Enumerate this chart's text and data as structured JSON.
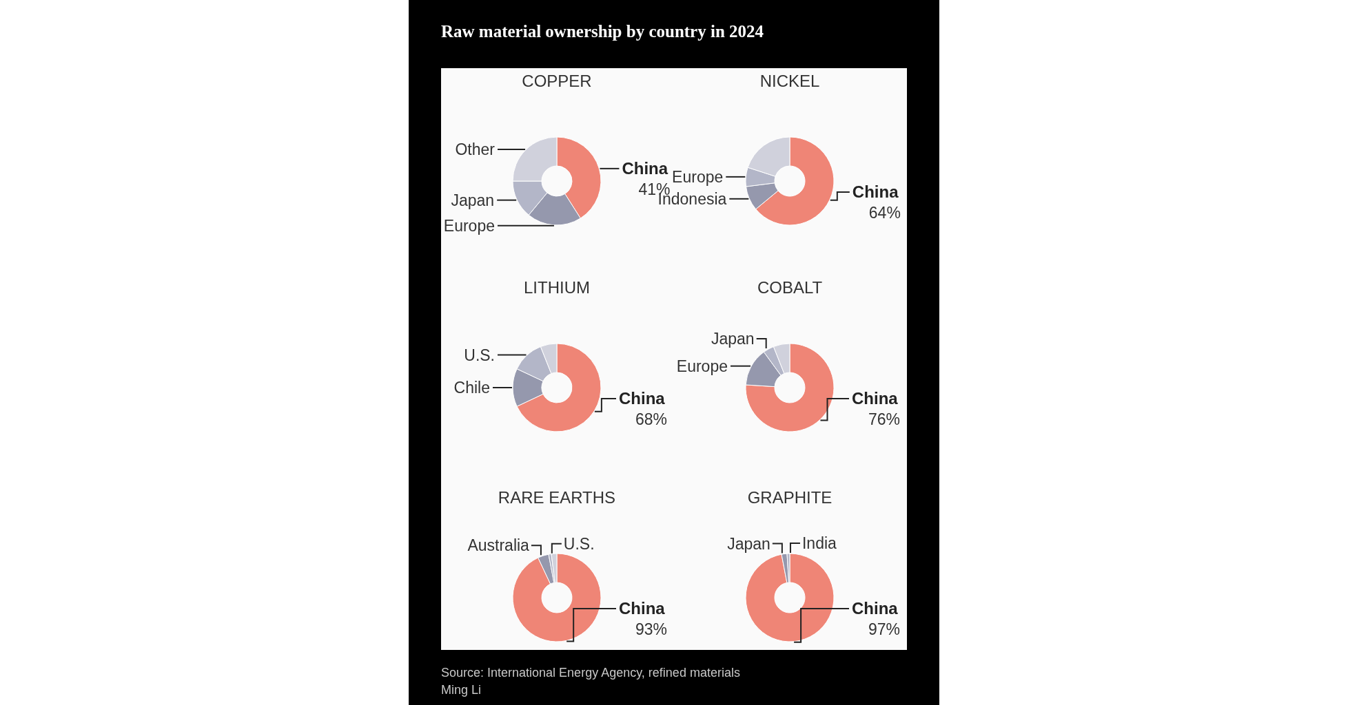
{
  "chart_data": [
    {
      "type": "donut",
      "title": "COPPER",
      "categories": [
        "China",
        "Europe",
        "Japan",
        "Other"
      ],
      "values": [
        41,
        20,
        14,
        25
      ],
      "value_labels": [
        "41%",
        null,
        null,
        null
      ],
      "colors": [
        "#ef8576",
        "#9598ad",
        "#b3b6c8",
        "#d0d1dc"
      ]
    },
    {
      "type": "donut",
      "title": "NICKEL",
      "categories": [
        "China",
        "Indonesia",
        "Europe",
        null
      ],
      "values": [
        64,
        9,
        7,
        20
      ],
      "value_labels": [
        "64%",
        null,
        null,
        null
      ],
      "colors": [
        "#ef8576",
        "#9598ad",
        "#b3b6c8",
        "#d0d1dc"
      ]
    },
    {
      "type": "donut",
      "title": "LITHIUM",
      "categories": [
        "China",
        "Chile",
        "U.S.",
        null
      ],
      "values": [
        68,
        14,
        12,
        6
      ],
      "value_labels": [
        "68%",
        null,
        null,
        null
      ],
      "colors": [
        "#ef8576",
        "#9598ad",
        "#b3b6c8",
        "#d0d1dc"
      ]
    },
    {
      "type": "donut",
      "title": "COBALT",
      "categories": [
        "China",
        "Europe",
        "Japan",
        null
      ],
      "values": [
        76,
        14,
        4,
        6
      ],
      "value_labels": [
        "76%",
        null,
        null,
        null
      ],
      "colors": [
        "#ef8576",
        "#9598ad",
        "#b3b6c8",
        "#d0d1dc"
      ]
    },
    {
      "type": "donut",
      "title": "RARE EARTHS",
      "categories": [
        "China",
        "Australia",
        "U.S.",
        null
      ],
      "values": [
        93,
        4,
        1,
        2
      ],
      "value_labels": [
        "93%",
        null,
        null,
        null
      ],
      "colors": [
        "#ef8576",
        "#9598ad",
        "#b3b6c8",
        "#d0d1dc"
      ]
    },
    {
      "type": "donut",
      "title": "GRAPHITE",
      "categories": [
        "China",
        "Japan",
        "India"
      ],
      "values": [
        97,
        2,
        1
      ],
      "value_labels": [
        "97%",
        null,
        null
      ],
      "colors": [
        "#ef8576",
        "#9598ad",
        "#b3b6c8"
      ]
    },
    {
      "type": "other",
      "title": "Raw material ownership by country in 2024",
      "annotations": [
        "Source: International Energy Agency, refined materials",
        "Ming Li"
      ]
    }
  ]
}
